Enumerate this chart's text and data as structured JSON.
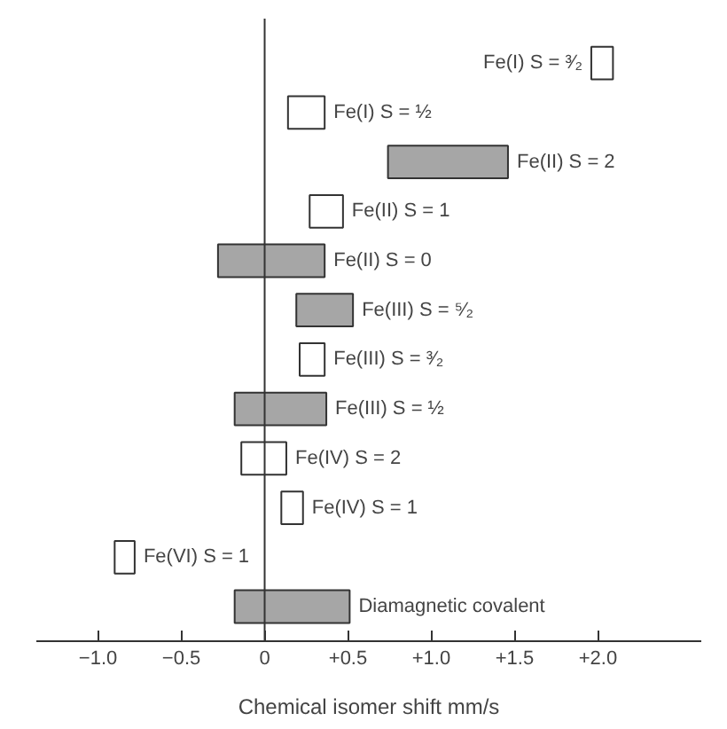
{
  "chart_data": {
    "type": "bar",
    "orientation": "horizontal",
    "xlabel": "Chemical isomer shift mm/s",
    "categories": [
      "Fe(I) S = ³⁄₂",
      "Fe(I) S = ½",
      "Fe(II) S = 2",
      "Fe(II) S = 1",
      "Fe(II) S = 0",
      "Fe(III) S = ⁵⁄₂",
      "Fe(III) S = ³⁄₂",
      "Fe(III) S = ½",
      "Fe(IV) S = 2",
      "Fe(IV) S = 1",
      "Fe(VI) S = 1",
      "Diamagnetic covalent"
    ],
    "base": [
      1.96,
      0.14,
      0.74,
      0.27,
      -0.28,
      0.19,
      0.21,
      -0.18,
      -0.14,
      0.1,
      -0.9,
      -0.18
    ],
    "values": [
      0.13,
      0.22,
      0.72,
      0.2,
      0.64,
      0.34,
      0.15,
      0.55,
      0.27,
      0.13,
      0.12,
      0.69
    ],
    "colors": [
      "#ffffff",
      "#ffffff",
      "#a6a6a6",
      "#ffffff",
      "#a6a6a6",
      "#a6a6a6",
      "#ffffff",
      "#a6a6a6",
      "#ffffff",
      "#ffffff",
      "#ffffff",
      "#a6a6a6"
    ],
    "xlim": [
      -1.37,
      2.62
    ],
    "xticks": [
      {
        "value": -1.0,
        "label": "−1.0"
      },
      {
        "value": -0.5,
        "label": "−0.5"
      },
      0,
      {
        "value": 0.5,
        "label": "+0.5"
      },
      {
        "value": 1.0,
        "label": "+1.0"
      },
      {
        "value": 1.5,
        "label": "+1.5"
      },
      {
        "value": 2.0,
        "label": "+2.0"
      }
    ],
    "ref_lines": [
      {
        "axis": "x",
        "value": 0,
        "color": "#333333"
      }
    ],
    "tick_labels": "x",
    "grid": false
  }
}
